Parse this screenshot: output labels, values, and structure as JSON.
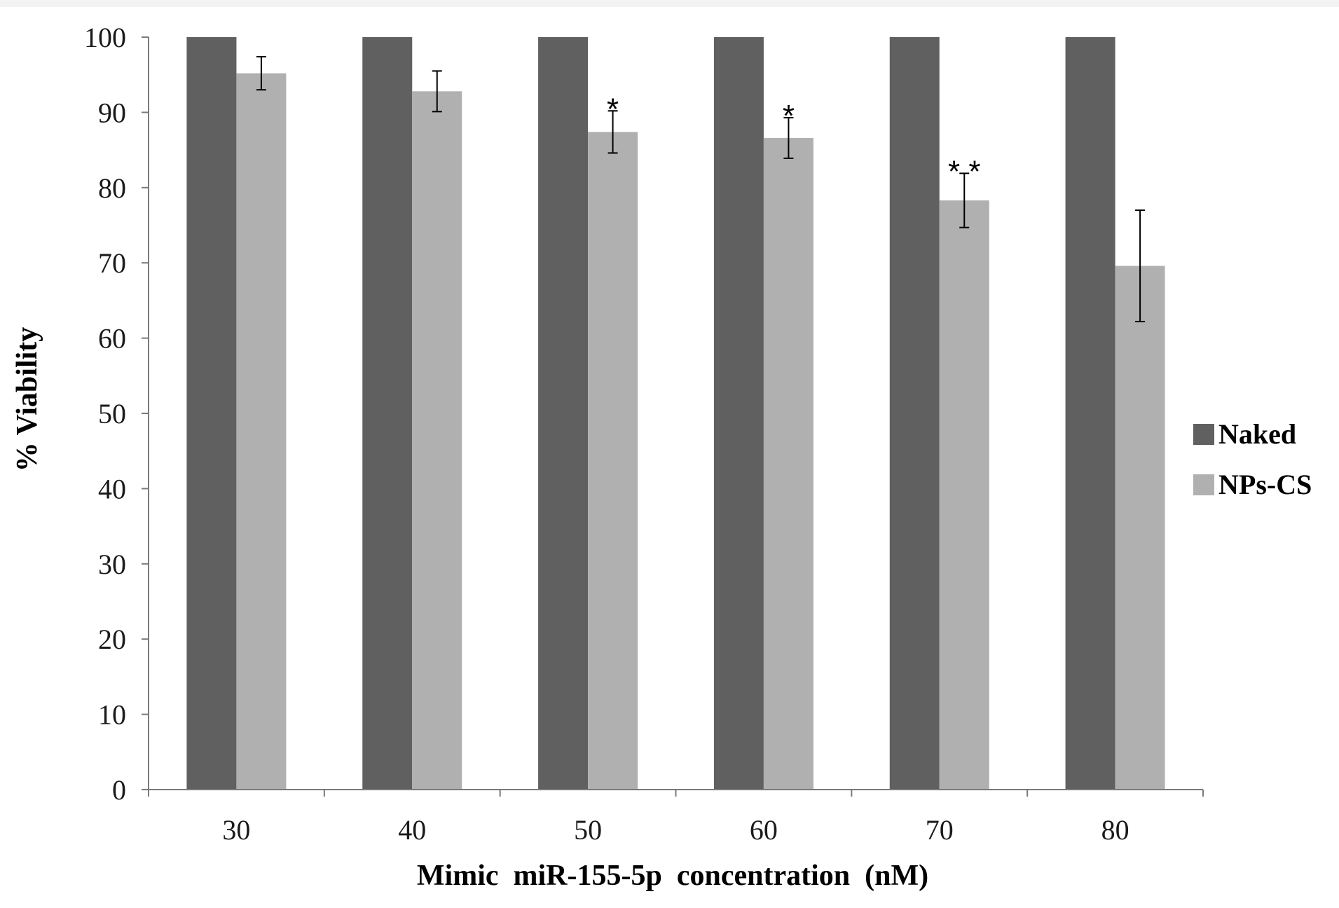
{
  "chart_data": {
    "type": "bar",
    "title": "",
    "xlabel": "Mimic  miR-155-5p  concentration  (nM)",
    "ylabel": "% Viability",
    "ylim": [
      0,
      100
    ],
    "yticks": [
      0,
      10,
      20,
      30,
      40,
      50,
      60,
      70,
      80,
      90,
      100
    ],
    "ytick_labels": [
      "0",
      "10",
      "20",
      "30",
      "40",
      "50",
      "60",
      "70",
      "80",
      "90",
      "100"
    ],
    "categories": [
      "30",
      "40",
      "50",
      "60",
      "70",
      "80"
    ],
    "grid": false,
    "legend_position": "right",
    "series": [
      {
        "name": "Naked",
        "color": "#606060",
        "values": [
          100,
          100,
          100,
          100,
          100,
          100
        ],
        "errors": [
          null,
          null,
          null,
          null,
          null,
          null
        ]
      },
      {
        "name": "NPs-CS",
        "color": "#b0b0b0",
        "values": [
          95.2,
          92.8,
          87.4,
          86.6,
          78.3,
          69.6
        ],
        "errors": [
          2.2,
          2.7,
          2.8,
          2.7,
          3.6,
          7.4
        ]
      }
    ],
    "annotations": [
      {
        "series": "NPs-CS",
        "category": "50",
        "text": "*"
      },
      {
        "series": "NPs-CS",
        "category": "60",
        "text": "*"
      },
      {
        "series": "NPs-CS",
        "category": "70",
        "text": "* *"
      }
    ]
  }
}
